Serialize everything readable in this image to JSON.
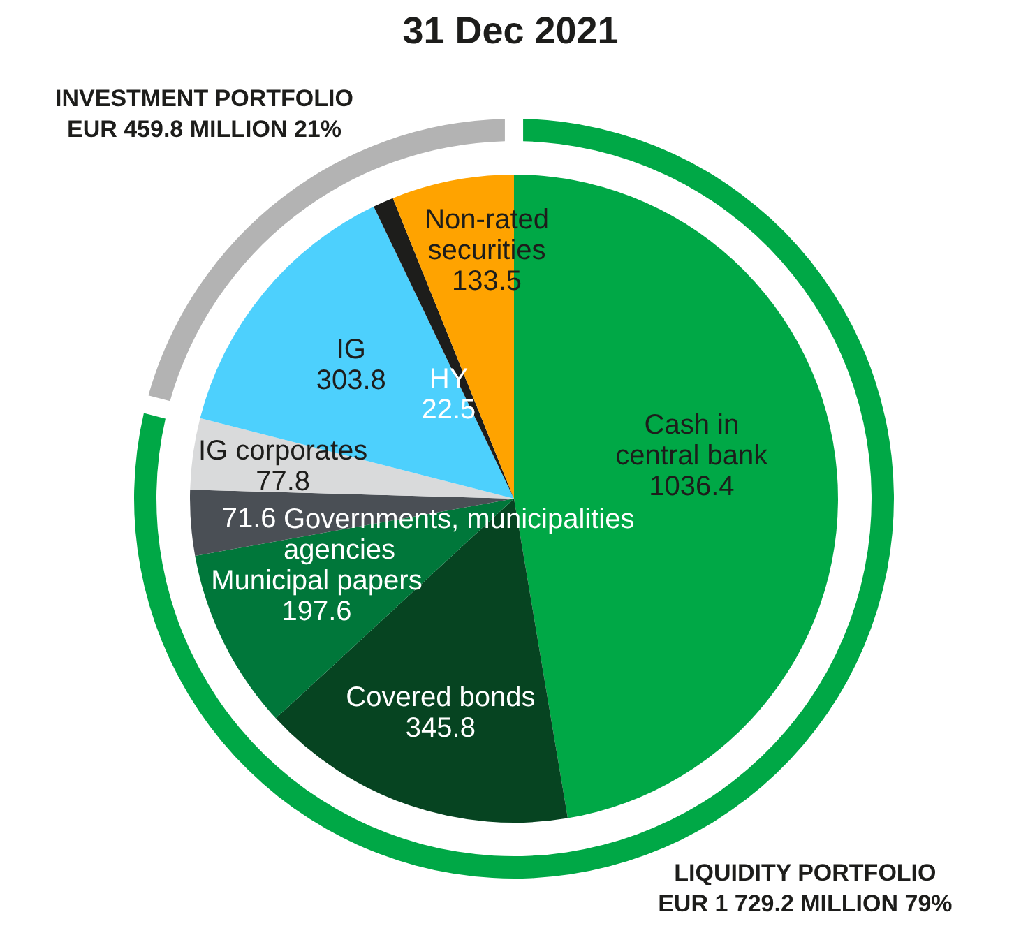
{
  "chart_data": [
    {
      "type": "donut",
      "title": "31 Dec 2021",
      "categories": [
        "LIQUIDITY PORTFOLIO",
        "INVESTMENT PORTFOLIO"
      ],
      "values": [
        1729.2,
        459.8
      ],
      "colors": [
        "#00a846",
        "#b3b3b3"
      ],
      "value_labels": [
        "EUR 1 729.2 MILLION 79%",
        "EUR 459.8 MILLION 21%"
      ]
    },
    {
      "type": "pie",
      "categories": [
        "Cash in central bank",
        "Covered bonds",
        "Municipal papers",
        "Governments, municipalities agencies",
        "IG corporates",
        "IG",
        "HY",
        "Non-rated securities"
      ],
      "values": [
        1036.4,
        345.8,
        197.6,
        71.6,
        77.8,
        303.8,
        22.5,
        133.5
      ],
      "colors": [
        "#00a846",
        "#064421",
        "#00773a",
        "#4a4f55",
        "#d9dadb",
        "#4dd0fd",
        "#1d1d1b",
        "#ffa300"
      ],
      "data_labels": true
    }
  ]
}
